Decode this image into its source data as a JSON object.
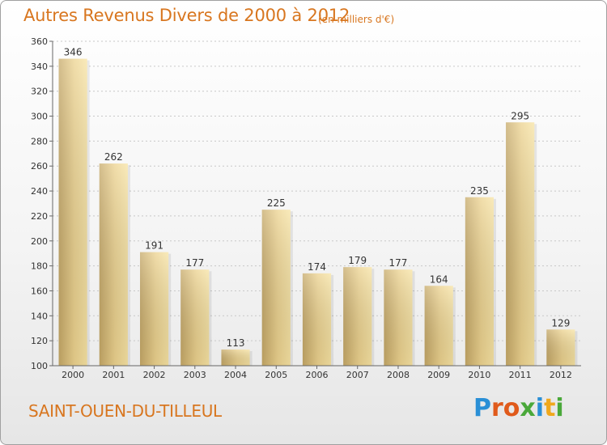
{
  "header": {
    "title": "Autres Revenus Divers de 2000 à 2012",
    "subtitle": "(en milliers d'€)"
  },
  "footer": {
    "commune": "SAINT-OUEN-DU-TILLEUL",
    "logo": "Proxiti"
  },
  "colors": {
    "title": "#d8761f",
    "bar_light": "#f7e3a3",
    "bar_dark": "#c5a867",
    "grid": "#c8c8c8",
    "logo_letters": [
      "#2a8fd6",
      "#e05a1b",
      "#e05a1b",
      "#4aa83a",
      "#2a8fd6",
      "#f0a81c",
      "#4aa83a"
    ]
  },
  "chart_data": {
    "type": "bar",
    "title": "Autres Revenus Divers de 2000 à 2012",
    "subtitle": "(en milliers d'€)",
    "categories": [
      "2000",
      "2001",
      "2002",
      "2003",
      "2004",
      "2005",
      "2006",
      "2007",
      "2008",
      "2009",
      "2010",
      "2011",
      "2012"
    ],
    "values": [
      346,
      262,
      191,
      177,
      113,
      225,
      174,
      179,
      177,
      164,
      235,
      295,
      129
    ],
    "ylim": [
      100,
      360
    ],
    "yticks": [
      100,
      120,
      140,
      160,
      180,
      200,
      220,
      240,
      260,
      280,
      300,
      320,
      340,
      360
    ],
    "xlabel": "",
    "ylabel": "",
    "grid": "horizontal-dashed",
    "legend": "none"
  }
}
